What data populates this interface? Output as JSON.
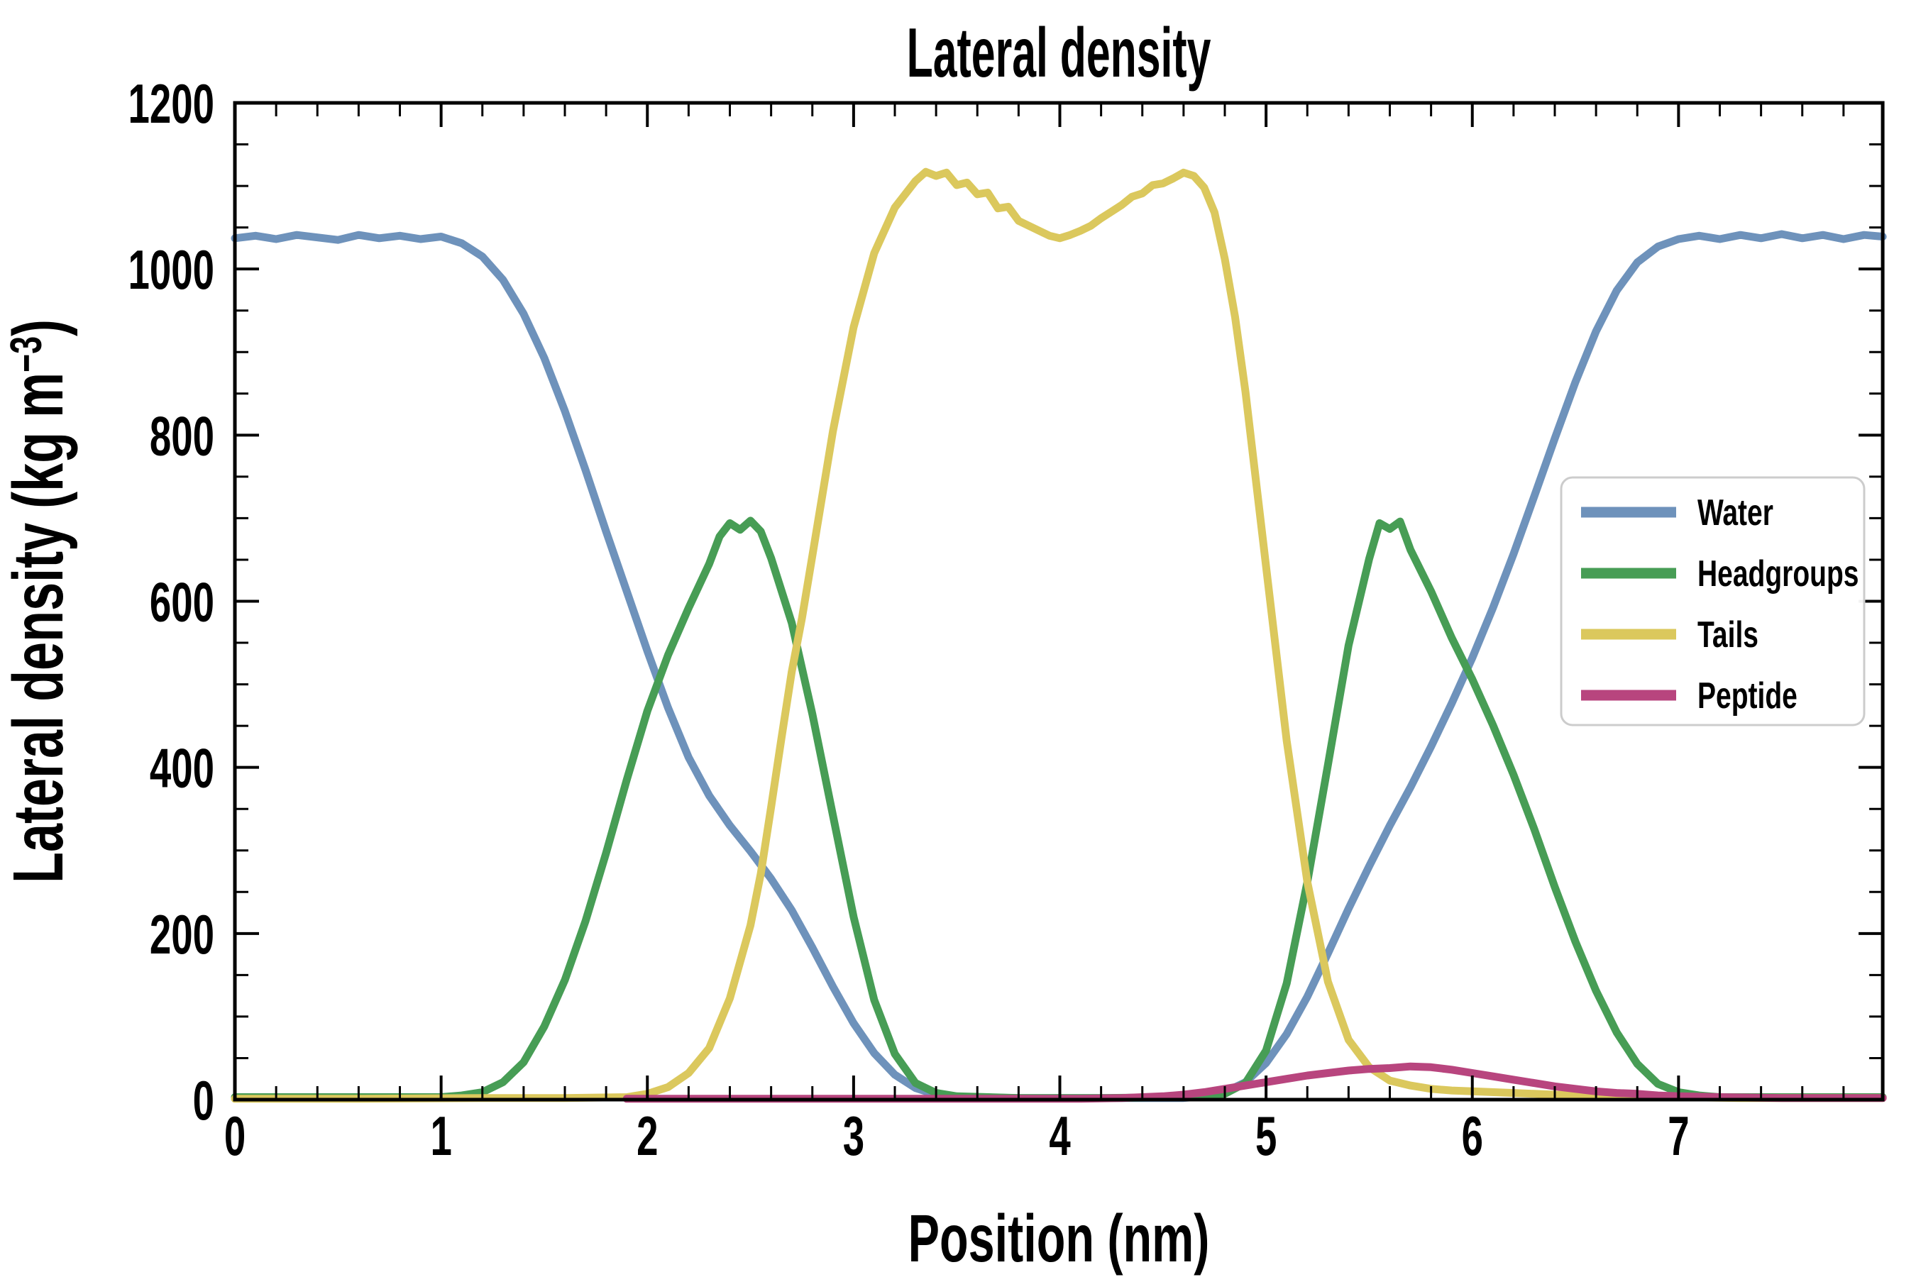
{
  "figure": {
    "background": "#ffffff",
    "title": "Lateral density",
    "xlabel": "Position (nm)",
    "ylabel_main": "Lateral density (kg m",
    "ylabel_sup": "−3",
    "ylabel_close": ")"
  },
  "chart_data": {
    "type": "line",
    "title": "Lateral density",
    "xlabel": "Position (nm)",
    "ylabel": "Lateral density (kg m−3)",
    "xlim": [
      0,
      7.99
    ],
    "ylim": [
      0,
      1200
    ],
    "grid": false,
    "x_major_ticks": [
      0,
      1,
      2,
      3,
      4,
      5,
      6,
      7
    ],
    "x_minor_step": 0.2,
    "y_major_ticks": [
      0,
      200,
      400,
      600,
      800,
      1000,
      1200
    ],
    "y_minor_step": 50,
    "legend": {
      "position": "center-right",
      "entries": [
        {
          "label": "Water",
          "color": "#6E92BB"
        },
        {
          "label": "Headgroups",
          "color": "#479D55"
        },
        {
          "label": "Tails",
          "color": "#DBC85D"
        },
        {
          "label": "Peptide",
          "color": "#B8457E"
        }
      ]
    },
    "series": [
      {
        "name": "Water",
        "color": "#6E92BB",
        "points": [
          [
            0,
            1037
          ],
          [
            0.1,
            1040
          ],
          [
            0.2,
            1036
          ],
          [
            0.3,
            1041
          ],
          [
            0.4,
            1038
          ],
          [
            0.5,
            1035
          ],
          [
            0.6,
            1041
          ],
          [
            0.7,
            1037
          ],
          [
            0.8,
            1040
          ],
          [
            0.9,
            1036
          ],
          [
            1.0,
            1039
          ],
          [
            1.1,
            1031
          ],
          [
            1.2,
            1015
          ],
          [
            1.3,
            987
          ],
          [
            1.4,
            946
          ],
          [
            1.5,
            893
          ],
          [
            1.6,
            829
          ],
          [
            1.7,
            758
          ],
          [
            1.8,
            684
          ],
          [
            1.9,
            612
          ],
          [
            2.0,
            540
          ],
          [
            2.1,
            472
          ],
          [
            2.2,
            412
          ],
          [
            2.3,
            366
          ],
          [
            2.4,
            330
          ],
          [
            2.5,
            299
          ],
          [
            2.6,
            266
          ],
          [
            2.7,
            228
          ],
          [
            2.8,
            183
          ],
          [
            2.9,
            136
          ],
          [
            3.0,
            92
          ],
          [
            3.1,
            56
          ],
          [
            3.2,
            30
          ],
          [
            3.3,
            14
          ],
          [
            3.4,
            6
          ],
          [
            3.5,
            3
          ],
          [
            3.8,
            2
          ],
          [
            4.2,
            2
          ],
          [
            4.6,
            2
          ],
          [
            4.7,
            4
          ],
          [
            4.8,
            9
          ],
          [
            4.9,
            21
          ],
          [
            5.0,
            44
          ],
          [
            5.1,
            79
          ],
          [
            5.2,
            124
          ],
          [
            5.3,
            176
          ],
          [
            5.4,
            230
          ],
          [
            5.5,
            281
          ],
          [
            5.6,
            330
          ],
          [
            5.7,
            376
          ],
          [
            5.8,
            425
          ],
          [
            5.9,
            477
          ],
          [
            6.0,
            532
          ],
          [
            6.1,
            592
          ],
          [
            6.2,
            657
          ],
          [
            6.3,
            726
          ],
          [
            6.4,
            796
          ],
          [
            6.5,
            864
          ],
          [
            6.6,
            925
          ],
          [
            6.7,
            974
          ],
          [
            6.8,
            1008
          ],
          [
            6.9,
            1027
          ],
          [
            7.0,
            1036
          ],
          [
            7.1,
            1040
          ],
          [
            7.2,
            1036
          ],
          [
            7.3,
            1041
          ],
          [
            7.4,
            1037
          ],
          [
            7.5,
            1042
          ],
          [
            7.6,
            1037
          ],
          [
            7.7,
            1041
          ],
          [
            7.8,
            1036
          ],
          [
            7.9,
            1041
          ],
          [
            7.99,
            1039
          ]
        ]
      },
      {
        "name": "Headgroups",
        "color": "#479D55",
        "points": [
          [
            0,
            3
          ],
          [
            0.4,
            3
          ],
          [
            0.8,
            3
          ],
          [
            1.0,
            3
          ],
          [
            1.1,
            5
          ],
          [
            1.2,
            9
          ],
          [
            1.3,
            21
          ],
          [
            1.4,
            45
          ],
          [
            1.5,
            88
          ],
          [
            1.6,
            144
          ],
          [
            1.7,
            215
          ],
          [
            1.8,
            297
          ],
          [
            1.9,
            385
          ],
          [
            2.0,
            468
          ],
          [
            2.1,
            535
          ],
          [
            2.2,
            592
          ],
          [
            2.3,
            645
          ],
          [
            2.35,
            678
          ],
          [
            2.4,
            694
          ],
          [
            2.45,
            686
          ],
          [
            2.5,
            697
          ],
          [
            2.55,
            684
          ],
          [
            2.6,
            652
          ],
          [
            2.7,
            574
          ],
          [
            2.8,
            464
          ],
          [
            2.9,
            342
          ],
          [
            3.0,
            220
          ],
          [
            3.1,
            120
          ],
          [
            3.2,
            55
          ],
          [
            3.3,
            20
          ],
          [
            3.4,
            8
          ],
          [
            3.5,
            4
          ],
          [
            3.8,
            2
          ],
          [
            4.2,
            2
          ],
          [
            4.6,
            3
          ],
          [
            4.8,
            7
          ],
          [
            4.9,
            20
          ],
          [
            5.0,
            59
          ],
          [
            5.1,
            140
          ],
          [
            5.2,
            262
          ],
          [
            5.3,
            403
          ],
          [
            5.4,
            547
          ],
          [
            5.5,
            651
          ],
          [
            5.55,
            694
          ],
          [
            5.6,
            687
          ],
          [
            5.65,
            696
          ],
          [
            5.7,
            662
          ],
          [
            5.8,
            612
          ],
          [
            5.9,
            556
          ],
          [
            6.0,
            506
          ],
          [
            6.1,
            451
          ],
          [
            6.2,
            391
          ],
          [
            6.3,
            326
          ],
          [
            6.4,
            256
          ],
          [
            6.5,
            190
          ],
          [
            6.6,
            131
          ],
          [
            6.7,
            81
          ],
          [
            6.8,
            43
          ],
          [
            6.9,
            19
          ],
          [
            7.0,
            9
          ],
          [
            7.1,
            5
          ],
          [
            7.2,
            3
          ],
          [
            7.5,
            3
          ],
          [
            7.99,
            3
          ]
        ]
      },
      {
        "name": "Tails",
        "color": "#DBC85D",
        "points": [
          [
            0,
            1
          ],
          [
            0.6,
            1
          ],
          [
            1.2,
            2
          ],
          [
            1.6,
            2
          ],
          [
            1.9,
            3
          ],
          [
            2.0,
            7
          ],
          [
            2.1,
            15
          ],
          [
            2.2,
            32
          ],
          [
            2.3,
            62
          ],
          [
            2.4,
            122
          ],
          [
            2.5,
            210
          ],
          [
            2.55,
            272
          ],
          [
            2.6,
            352
          ],
          [
            2.65,
            435
          ],
          [
            2.7,
            515
          ],
          [
            2.75,
            580
          ],
          [
            2.8,
            655
          ],
          [
            2.9,
            805
          ],
          [
            3.0,
            930
          ],
          [
            3.1,
            1019
          ],
          [
            3.2,
            1074
          ],
          [
            3.3,
            1106
          ],
          [
            3.35,
            1117
          ],
          [
            3.4,
            1112
          ],
          [
            3.45,
            1116
          ],
          [
            3.5,
            1101
          ],
          [
            3.55,
            1104
          ],
          [
            3.6,
            1090
          ],
          [
            3.65,
            1092
          ],
          [
            3.7,
            1073
          ],
          [
            3.75,
            1075
          ],
          [
            3.8,
            1058
          ],
          [
            3.85,
            1052
          ],
          [
            3.9,
            1046
          ],
          [
            3.95,
            1040
          ],
          [
            4.0,
            1037
          ],
          [
            4.05,
            1041
          ],
          [
            4.1,
            1046
          ],
          [
            4.15,
            1052
          ],
          [
            4.2,
            1061
          ],
          [
            4.25,
            1069
          ],
          [
            4.3,
            1077
          ],
          [
            4.35,
            1087
          ],
          [
            4.4,
            1091
          ],
          [
            4.45,
            1101
          ],
          [
            4.5,
            1103
          ],
          [
            4.55,
            1109
          ],
          [
            4.6,
            1116
          ],
          [
            4.65,
            1112
          ],
          [
            4.7,
            1098
          ],
          [
            4.75,
            1068
          ],
          [
            4.8,
            1012
          ],
          [
            4.85,
            942
          ],
          [
            4.9,
            852
          ],
          [
            5.0,
            642
          ],
          [
            5.1,
            432
          ],
          [
            5.2,
            262
          ],
          [
            5.3,
            142
          ],
          [
            5.4,
            72
          ],
          [
            5.5,
            39
          ],
          [
            5.6,
            23
          ],
          [
            5.7,
            17
          ],
          [
            5.8,
            13
          ],
          [
            5.9,
            11
          ],
          [
            6.0,
            10
          ],
          [
            6.2,
            8
          ],
          [
            6.4,
            6
          ],
          [
            6.6,
            5
          ],
          [
            6.8,
            4
          ],
          [
            7.0,
            3
          ],
          [
            7.3,
            2
          ],
          [
            7.6,
            2
          ],
          [
            7.99,
            2
          ]
        ]
      },
      {
        "name": "Peptide",
        "color": "#B8457E",
        "points": [
          [
            1.9,
            1
          ],
          [
            2.3,
            1
          ],
          [
            2.7,
            1
          ],
          [
            3.1,
            1
          ],
          [
            3.5,
            1
          ],
          [
            3.9,
            1
          ],
          [
            4.1,
            1
          ],
          [
            4.3,
            2
          ],
          [
            4.5,
            4
          ],
          [
            4.6,
            6
          ],
          [
            4.7,
            9
          ],
          [
            4.8,
            13
          ],
          [
            4.9,
            17
          ],
          [
            5.0,
            21
          ],
          [
            5.1,
            25
          ],
          [
            5.2,
            29
          ],
          [
            5.3,
            32
          ],
          [
            5.4,
            35
          ],
          [
            5.5,
            37
          ],
          [
            5.6,
            38
          ],
          [
            5.7,
            40
          ],
          [
            5.8,
            39
          ],
          [
            5.9,
            36
          ],
          [
            6.0,
            32
          ],
          [
            6.1,
            28
          ],
          [
            6.2,
            24
          ],
          [
            6.3,
            20
          ],
          [
            6.4,
            16
          ],
          [
            6.5,
            13
          ],
          [
            6.6,
            10
          ],
          [
            6.7,
            8
          ],
          [
            6.8,
            7
          ],
          [
            6.9,
            5
          ],
          [
            7.0,
            4
          ],
          [
            7.2,
            3
          ],
          [
            7.5,
            2
          ],
          [
            7.8,
            2
          ],
          [
            7.99,
            2
          ]
        ]
      }
    ]
  }
}
